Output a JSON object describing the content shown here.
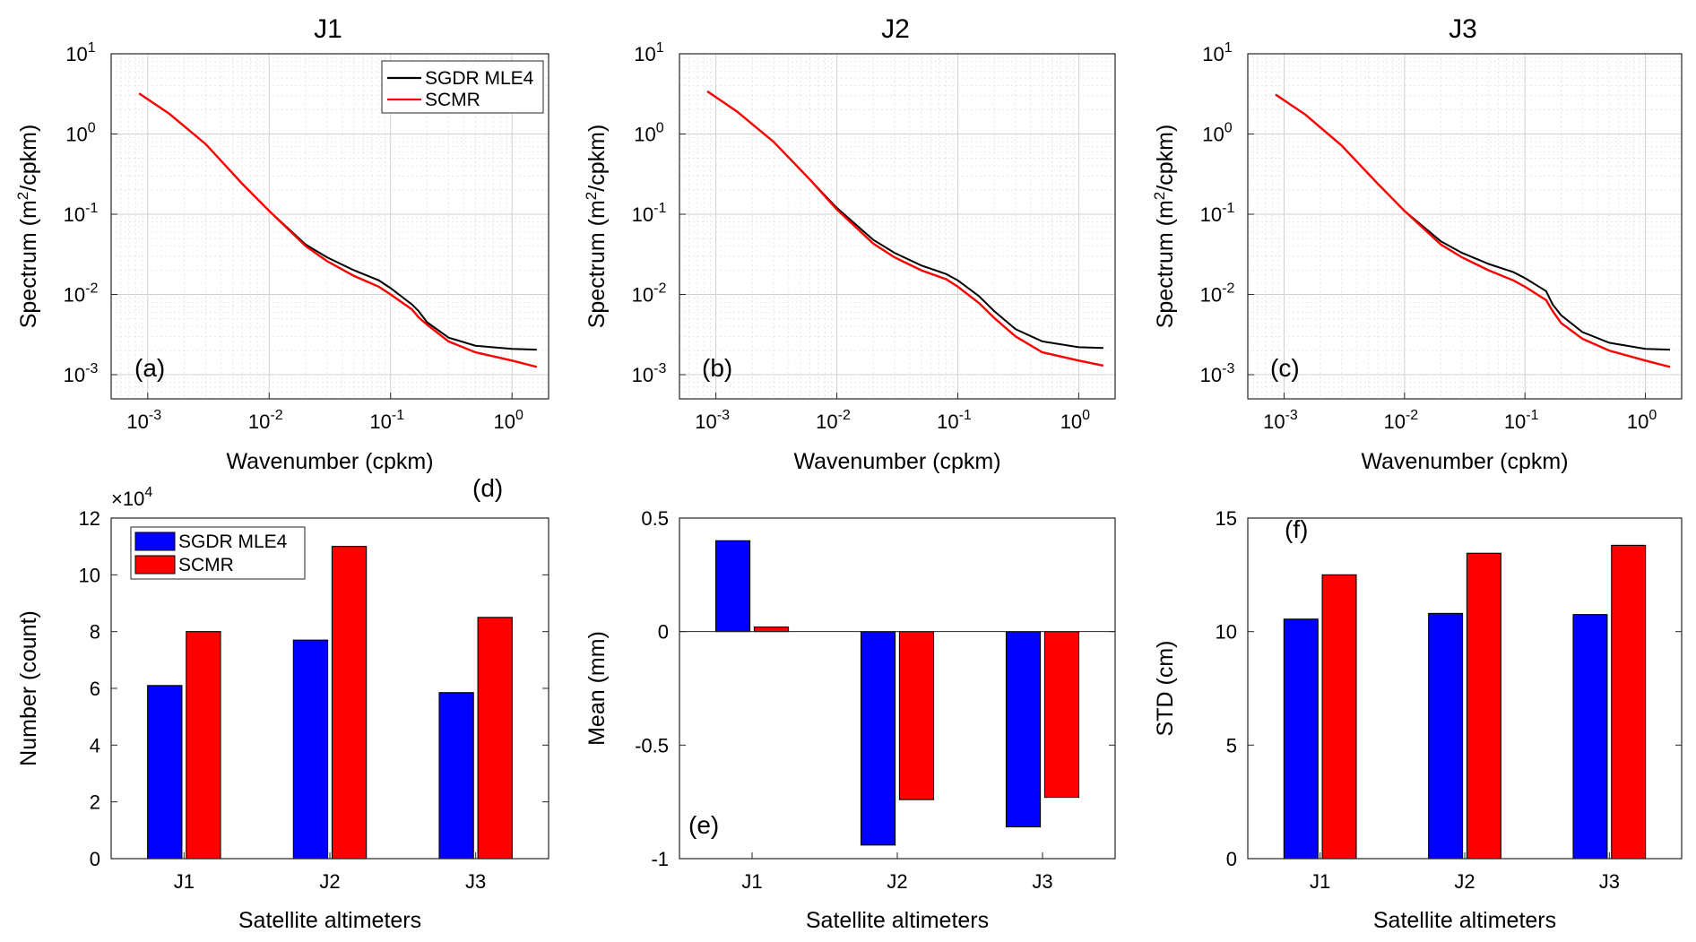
{
  "colors": {
    "black_series": "#000000",
    "red_series": "#ff0000",
    "blue_bar": "#0000ff",
    "red_bar": "#ff0000"
  },
  "chart_data": [
    {
      "id": "a",
      "type": "line",
      "title": "J1",
      "tag": "(a)",
      "xlabel": "Wavenumber (cpkm)",
      "ylabel_main": "Spectrum (m",
      "ylabel_sup": "2",
      "ylabel_tail": "/cpkm)",
      "xscale": "log",
      "yscale": "log",
      "xlim": [
        0.0005,
        2.0
      ],
      "ylim": [
        0.0005,
        10
      ],
      "xtick_bases": [
        "10",
        "10",
        "10",
        "10"
      ],
      "xtick_exps": [
        "-3",
        "-2",
        "-1",
        "0"
      ],
      "ytick_bases": [
        "10",
        "10",
        "10",
        "10",
        "10"
      ],
      "ytick_exps": [
        "-3",
        "-2",
        "-1",
        "0",
        "1"
      ],
      "grid": true,
      "legend": {
        "placement": "top-right",
        "entries": [
          "SGDR MLE4",
          "SCMR"
        ]
      },
      "series": [
        {
          "name": "SGDR MLE4",
          "color": "#000000",
          "x": [
            0.00085,
            0.0015,
            0.003,
            0.006,
            0.01,
            0.02,
            0.03,
            0.05,
            0.08,
            0.1,
            0.15,
            0.17,
            0.2,
            0.3,
            0.5,
            1.0,
            1.6
          ],
          "y": [
            3.2,
            1.8,
            0.75,
            0.24,
            0.11,
            0.042,
            0.029,
            0.02,
            0.015,
            0.012,
            0.0075,
            0.0062,
            0.0045,
            0.0029,
            0.0023,
            0.0021,
            0.00205
          ]
        },
        {
          "name": "SCMR",
          "color": "#ff0000",
          "x": [
            0.00085,
            0.0015,
            0.003,
            0.006,
            0.01,
            0.02,
            0.03,
            0.05,
            0.08,
            0.1,
            0.15,
            0.17,
            0.2,
            0.3,
            0.5,
            1.0,
            1.6
          ],
          "y": [
            3.2,
            1.8,
            0.75,
            0.24,
            0.11,
            0.04,
            0.026,
            0.017,
            0.0125,
            0.01,
            0.0065,
            0.0052,
            0.0042,
            0.0026,
            0.0019,
            0.0015,
            0.00125
          ]
        }
      ]
    },
    {
      "id": "b",
      "type": "line",
      "title": "J2",
      "tag": "(b)",
      "xlabel": "Wavenumber (cpkm)",
      "ylabel_main": "Spectrum (m",
      "ylabel_sup": "2",
      "ylabel_tail": "/cpkm)",
      "xscale": "log",
      "yscale": "log",
      "xlim": [
        0.0005,
        2.0
      ],
      "ylim": [
        0.0005,
        10
      ],
      "xtick_bases": [
        "10",
        "10",
        "10",
        "10"
      ],
      "xtick_exps": [
        "-3",
        "-2",
        "-1",
        "0"
      ],
      "ytick_bases": [
        "10",
        "10",
        "10",
        "10",
        "10"
      ],
      "ytick_exps": [
        "-3",
        "-2",
        "-1",
        "0",
        "1"
      ],
      "grid": true,
      "legend": null,
      "series": [
        {
          "name": "SGDR MLE4",
          "color": "#000000",
          "x": [
            0.00085,
            0.0015,
            0.003,
            0.006,
            0.01,
            0.02,
            0.03,
            0.05,
            0.08,
            0.1,
            0.15,
            0.2,
            0.3,
            0.5,
            1.0,
            1.6
          ],
          "y": [
            3.4,
            1.9,
            0.8,
            0.27,
            0.12,
            0.048,
            0.033,
            0.023,
            0.018,
            0.015,
            0.0095,
            0.0062,
            0.0037,
            0.0026,
            0.0022,
            0.00215
          ]
        },
        {
          "name": "SCMR",
          "color": "#ff0000",
          "x": [
            0.00085,
            0.0015,
            0.003,
            0.006,
            0.01,
            0.02,
            0.03,
            0.05,
            0.08,
            0.1,
            0.15,
            0.2,
            0.3,
            0.5,
            1.0,
            1.6
          ],
          "y": [
            3.4,
            1.9,
            0.8,
            0.27,
            0.115,
            0.043,
            0.029,
            0.02,
            0.0155,
            0.0125,
            0.0078,
            0.0051,
            0.003,
            0.0019,
            0.0015,
            0.0013
          ]
        }
      ]
    },
    {
      "id": "c",
      "type": "line",
      "title": "J3",
      "tag": "(c)",
      "xlabel": "Wavenumber (cpkm)",
      "ylabel_main": "Spectrum (m",
      "ylabel_sup": "2",
      "ylabel_tail": "/cpkm)",
      "xscale": "log",
      "yscale": "log",
      "xlim": [
        0.0005,
        2.0
      ],
      "ylim": [
        0.0005,
        10
      ],
      "xtick_bases": [
        "10",
        "10",
        "10",
        "10"
      ],
      "xtick_exps": [
        "-3",
        "-2",
        "-1",
        "0"
      ],
      "ytick_bases": [
        "10",
        "10",
        "10",
        "10",
        "10"
      ],
      "ytick_exps": [
        "-3",
        "-2",
        "-1",
        "0",
        "1"
      ],
      "grid": true,
      "legend": null,
      "series": [
        {
          "name": "SGDR MLE4",
          "color": "#000000",
          "x": [
            0.00085,
            0.0015,
            0.003,
            0.006,
            0.01,
            0.02,
            0.03,
            0.05,
            0.08,
            0.1,
            0.15,
            0.17,
            0.2,
            0.3,
            0.5,
            1.0,
            1.6
          ],
          "y": [
            3.1,
            1.75,
            0.72,
            0.24,
            0.11,
            0.046,
            0.033,
            0.024,
            0.019,
            0.016,
            0.011,
            0.0075,
            0.0055,
            0.0034,
            0.0025,
            0.0021,
            0.00205
          ]
        },
        {
          "name": "SCMR",
          "color": "#ff0000",
          "x": [
            0.00085,
            0.0015,
            0.003,
            0.006,
            0.01,
            0.02,
            0.03,
            0.05,
            0.08,
            0.1,
            0.15,
            0.17,
            0.2,
            0.3,
            0.5,
            1.0,
            1.6
          ],
          "y": [
            3.1,
            1.75,
            0.72,
            0.24,
            0.11,
            0.042,
            0.029,
            0.02,
            0.015,
            0.0125,
            0.0085,
            0.0062,
            0.0044,
            0.0028,
            0.002,
            0.0015,
            0.00125
          ]
        }
      ]
    },
    {
      "id": "d",
      "type": "bar",
      "tag": "(d)",
      "categories": [
        "J1",
        "J2",
        "J3"
      ],
      "xlabel": "Satellite altimeters",
      "ylabel": "Number (count)",
      "ylim": [
        0,
        12
      ],
      "yticks": [
        0,
        2,
        4,
        6,
        8,
        10,
        12
      ],
      "ytick_labels": [
        "0",
        "2",
        "4",
        "6",
        "8",
        "10",
        "12"
      ],
      "multiplier_base": "×10",
      "multiplier_exp": "4",
      "legend": {
        "placement": "top-left",
        "entries": [
          "SGDR MLE4",
          "SCMR"
        ]
      },
      "series": [
        {
          "name": "SGDR MLE4",
          "color": "#0000ff",
          "values": [
            6.1,
            7.7,
            5.85
          ]
        },
        {
          "name": "SCMR",
          "color": "#ff0000",
          "values": [
            8.0,
            11.0,
            8.5
          ]
        }
      ]
    },
    {
      "id": "e",
      "type": "bar",
      "tag": "(e)",
      "categories": [
        "J1",
        "J2",
        "J3"
      ],
      "xlabel": "Satellite altimeters",
      "ylabel": "Mean (mm)",
      "ylim": [
        -1,
        0.5
      ],
      "yticks": [
        -1,
        -0.5,
        0,
        0.5
      ],
      "ytick_labels": [
        "-1",
        "-0.5",
        "0",
        "0.5"
      ],
      "zero_line": true,
      "legend": null,
      "series": [
        {
          "name": "SGDR MLE4",
          "color": "#0000ff",
          "values": [
            0.4,
            -0.94,
            -0.86
          ]
        },
        {
          "name": "SCMR",
          "color": "#ff0000",
          "values": [
            0.02,
            -0.74,
            -0.73
          ]
        }
      ]
    },
    {
      "id": "f",
      "type": "bar",
      "tag": "(f)",
      "categories": [
        "J1",
        "J2",
        "J3"
      ],
      "xlabel": "Satellite altimeters",
      "ylabel": "STD (cm)",
      "ylim": [
        0,
        15
      ],
      "yticks": [
        0,
        5,
        10,
        15
      ],
      "ytick_labels": [
        "0",
        "5",
        "10",
        "15"
      ],
      "legend": null,
      "series": [
        {
          "name": "SGDR MLE4",
          "color": "#0000ff",
          "values": [
            10.55,
            10.8,
            10.75
          ]
        },
        {
          "name": "SCMR",
          "color": "#ff0000",
          "values": [
            12.5,
            13.45,
            13.8
          ]
        }
      ]
    }
  ]
}
